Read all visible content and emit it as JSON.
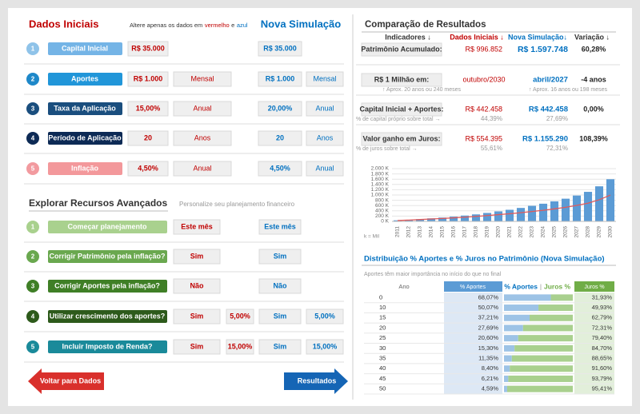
{
  "left": {
    "title": "Dados Iniciais",
    "note": {
      "before": "Altere apenas os dados em",
      "red": "vermelho",
      "and": "e",
      "blue": "azul"
    },
    "new_title": "Nova Simulação",
    "inputs": [
      {
        "n": "1",
        "label": "Capital Inicial",
        "initial": "R$ 35.000",
        "new": "R$ 35.000"
      },
      {
        "n": "2",
        "label": "Aportes",
        "initial": "R$ 1.000",
        "initial_unit": "Mensal",
        "new": "R$ 1.000",
        "new_unit": "Mensal"
      },
      {
        "n": "3",
        "label": "Taxa da Aplicação",
        "initial": "15,00%",
        "initial_unit": "Anual",
        "new": "20,00%",
        "new_unit": "Anual"
      },
      {
        "n": "4",
        "label": "Período de Aplicação",
        "initial": "20",
        "initial_unit": "Anos",
        "new": "20",
        "new_unit": "Anos"
      },
      {
        "n": "5",
        "label": "Inflação",
        "initial": "4,50%",
        "initial_unit": "Anual",
        "new": "4,50%",
        "new_unit": "Anual"
      }
    ],
    "advanced_title": "Explorar Recursos Avançados",
    "advanced_note": "Personalize seu planejamento financeiro",
    "advanced": [
      {
        "n": "1",
        "label": "Começar planejamento",
        "initial": "Este mês",
        "new": "Este mês"
      },
      {
        "n": "2",
        "label": "Corrigir Patrimônio pela inflação?",
        "initial": "Sim",
        "new": "Sim"
      },
      {
        "n": "3",
        "label": "Corrigir Aportes pela inflação?",
        "initial": "Não",
        "new": "Não"
      },
      {
        "n": "4",
        "label": "Utilizar crescimento dos aportes?",
        "initial": "Sim",
        "initial_pct": "5,00%",
        "new": "Sim",
        "new_pct": "5,00%"
      },
      {
        "n": "5",
        "label": "Incluir Imposto de Renda?",
        "initial": "Sim",
        "initial_pct": "15,00%",
        "new": "Sim",
        "new_pct": "15,00%"
      }
    ],
    "back_button": "Voltar para Dados",
    "results_button": "Resultados"
  },
  "right": {
    "title": "Comparação de Resultados",
    "headers": [
      "Indicadores ↓",
      "Dados Iniciais ↓",
      "Nova Simulação↓",
      "Variação ↓"
    ],
    "rows": [
      {
        "label": "Patrimônio Acumulado:",
        "initial": "R$ 996.852",
        "new": "R$ 1.597.748",
        "change": "60,28%"
      },
      {
        "label": "R$ 1 Milhão em:",
        "initial": "outubro/2030",
        "new": "abril/2027",
        "change": "-4 anos",
        "initial_note": "↑ Aprox. 20 anos ou 240 meses",
        "new_note": "↑ Aprox. 16 anos ou 198 meses"
      },
      {
        "label": "Capital Inicial + Aportes:",
        "initial": "R$ 442.458",
        "new": "R$ 442.458",
        "change": "0,00%",
        "sub_label": "% de capital próprio sobre total →",
        "initial_sub": "44,39%",
        "new_sub": "27,69%"
      },
      {
        "label": "Valor ganho em Juros:",
        "initial": "R$ 554.395",
        "new": "R$ 1.155.290",
        "change": "108,39%",
        "sub_label": "% de juros sobre total →",
        "initial_sub": "55,61%",
        "new_sub": "72,31%"
      }
    ]
  },
  "chart_data": {
    "type": "bar",
    "categories": [
      "2011",
      "2012",
      "2013",
      "2014",
      "2015",
      "2016",
      "2017",
      "2018",
      "2019",
      "2020",
      "2021",
      "2022",
      "2023",
      "2024",
      "2025",
      "2026",
      "2027",
      "2028",
      "2029",
      "2030"
    ],
    "series": [
      {
        "type": "bar",
        "color": "#5b9bd5",
        "values": [
          40,
          60,
          85,
          115,
          145,
          180,
          220,
          265,
          320,
          380,
          440,
          510,
          590,
          670,
          760,
          860,
          980,
          1120,
          1330,
          1598
        ]
      },
      {
        "type": "line",
        "color": "#e05a5a",
        "values": [
          35,
          50,
          70,
          90,
          110,
          135,
          160,
          190,
          220,
          255,
          290,
          330,
          375,
          420,
          475,
          535,
          605,
          690,
          820,
          997
        ]
      }
    ],
    "ylim": [
      0,
      2000
    ],
    "yticks": [
      {
        "value": 0,
        "label": "0 K"
      },
      {
        "value": 200,
        "label": "200 K"
      },
      {
        "value": 400,
        "label": "400 K"
      },
      {
        "value": 600,
        "label": "600 K"
      },
      {
        "value": 800,
        "label": "800 K"
      },
      {
        "value": 1000,
        "label": "1.000 K"
      },
      {
        "value": 1200,
        "label": "1.200 K"
      },
      {
        "value": 1400,
        "label": "1.400 K"
      },
      {
        "value": 1600,
        "label": "1.600 K"
      },
      {
        "value": 1800,
        "label": "1.800 K"
      },
      {
        "value": 2000,
        "label": "2.000 K"
      }
    ],
    "grid": true,
    "annotation": "k = Mil"
  },
  "distribution": {
    "title": "Distribuição % Aportes e % Juros no Patrimônio (Nova Simulação)",
    "note": "Aportes têm maior importância no início do que no final",
    "headers": {
      "year": "Ano",
      "aportes": "% Aportes",
      "bar_aportes": "% Aportes",
      "bar_sep": "|",
      "bar_juros": "Juros %",
      "juros": "Juros %"
    },
    "rows": [
      {
        "year": "0",
        "aportes": 68.07,
        "aportes_label": "68,07%",
        "juros": 31.93,
        "juros_label": "31,93%"
      },
      {
        "year": "10",
        "aportes": 50.07,
        "aportes_label": "50,07%",
        "juros": 49.93,
        "juros_label": "49,93%"
      },
      {
        "year": "15",
        "aportes": 37.21,
        "aportes_label": "37,21%",
        "juros": 62.79,
        "juros_label": "62,79%"
      },
      {
        "year": "20",
        "aportes": 27.69,
        "aportes_label": "27,69%",
        "juros": 72.31,
        "juros_label": "72,31%"
      },
      {
        "year": "25",
        "aportes": 20.6,
        "aportes_label": "20,60%",
        "juros": 79.4,
        "juros_label": "79,40%"
      },
      {
        "year": "30",
        "aportes": 15.3,
        "aportes_label": "15,30%",
        "juros": 84.7,
        "juros_label": "84,70%"
      },
      {
        "year": "35",
        "aportes": 11.35,
        "aportes_label": "11,35%",
        "juros": 88.65,
        "juros_label": "88,65%"
      },
      {
        "year": "40",
        "aportes": 8.4,
        "aportes_label": "8,40%",
        "juros": 91.6,
        "juros_label": "91,60%"
      },
      {
        "year": "45",
        "aportes": 6.21,
        "aportes_label": "6,21%",
        "juros": 93.79,
        "juros_label": "93,79%"
      },
      {
        "year": "50",
        "aportes": 4.59,
        "aportes_label": "4,59%",
        "juros": 95.41,
        "juros_label": "95,41%"
      }
    ]
  }
}
